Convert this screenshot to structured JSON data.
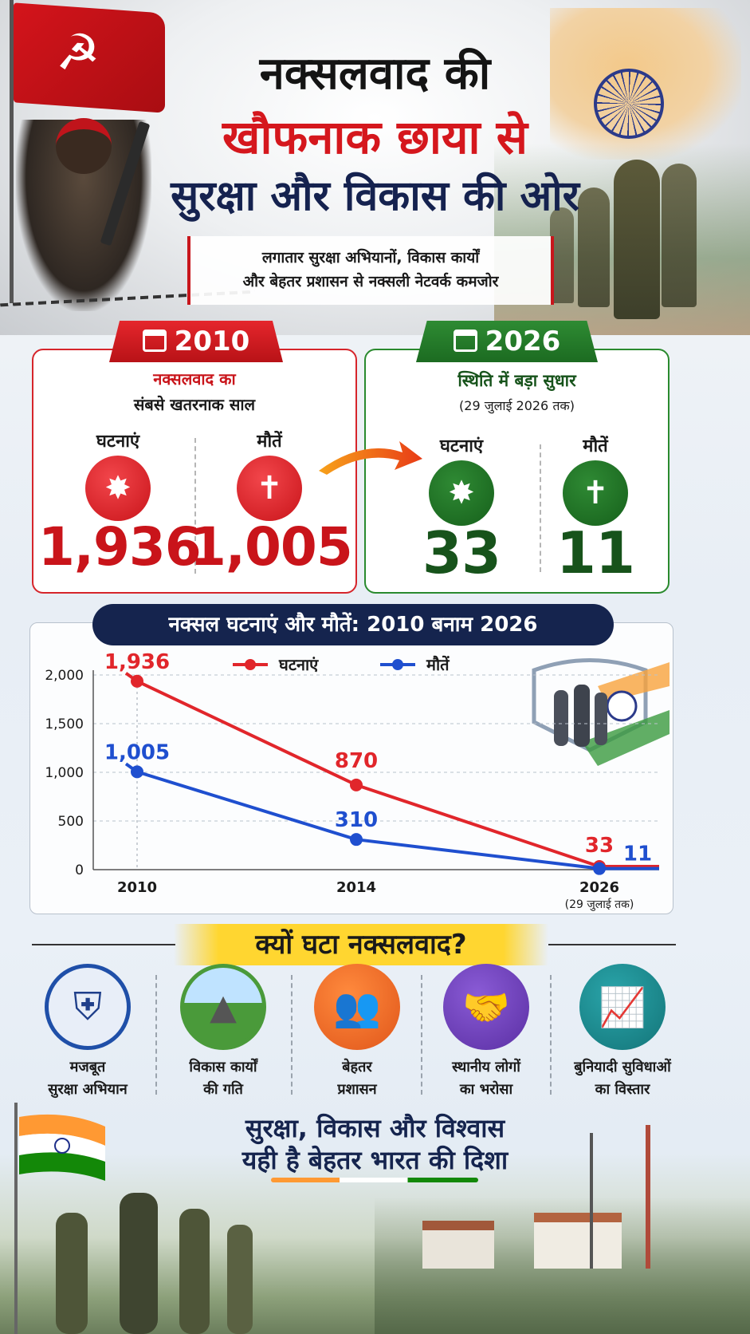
{
  "hero": {
    "title_line1": "नक्सलवाद की",
    "title_line2": "खौफनाक छाया से",
    "title_line3": "सुरक्षा और विकास की ओर",
    "subtitle_line1": "लगातार सुरक्षा अभियानों, विकास कार्यों",
    "subtitle_line2": "और बेहतर प्रशासन से नक्सली नेटवर्क कमजोर"
  },
  "card_2010": {
    "year": "2010",
    "sub_line1": "नक्सलवाद का",
    "sub_line2": "संबसे खतरनाक साल",
    "incidents_label": "घटनाएं",
    "deaths_label": "मौतें",
    "incidents": "1,936",
    "deaths": "1,005",
    "accent": "#c9141a"
  },
  "card_2026": {
    "year": "2026",
    "sub_line1": "स्थिति में बड़ा सुधार",
    "sub_line2": "(29 जुलाई 2026 तक)",
    "incidents_label": "घटनाएं",
    "deaths_label": "मौतें",
    "incidents": "33",
    "deaths": "11",
    "accent": "#17531b"
  },
  "chart_data": {
    "type": "line",
    "title": "नक्सल घटनाएं और मौतें: 2010 बनाम 2026",
    "categories": [
      "2010",
      "2014",
      "2026"
    ],
    "x_note": "(29 जुलाई तक)",
    "series": [
      {
        "name": "घटनाएं",
        "values": [
          1936,
          870,
          33
        ],
        "labels": [
          "1,936",
          "870",
          "33"
        ],
        "color": "#e1262b"
      },
      {
        "name": "मौतें",
        "values": [
          1005,
          310,
          11
        ],
        "labels": [
          "1,005",
          "310",
          "11"
        ],
        "color": "#1f4fcf"
      }
    ],
    "yticks": [
      "0",
      "500",
      "1,000",
      "1,500",
      "2,000"
    ],
    "ylim": [
      0,
      2000
    ],
    "grid": true,
    "legend": "top-center"
  },
  "why": {
    "title": "क्यों घटा नक्सलवाद?",
    "reasons": [
      {
        "line1": "मजबूत",
        "line2": "सुरक्षा अभियान",
        "icon": "shield-soldier-icon",
        "color": "#1f4fa8"
      },
      {
        "line1": "विकास कार्यों",
        "line2": "की गति",
        "icon": "road-icon",
        "color": "#4a9a3a"
      },
      {
        "line1": "बेहतर",
        "line2": "प्रशासन",
        "icon": "people-group-icon",
        "color": "#f26b21"
      },
      {
        "line1": "स्थानीय लोगों",
        "line2": "का भरोसा",
        "icon": "handshake-icon",
        "color": "#6b3fb5"
      },
      {
        "line1": "बुनियादी सुविधाओं",
        "line2": "का विस्तार",
        "icon": "growth-chart-icon",
        "color": "#1a8a8f"
      }
    ]
  },
  "footer": {
    "line1": "सुरक्षा, विकास और विश्वास",
    "line2": "यही है बेहतर भारत की दिशा"
  }
}
